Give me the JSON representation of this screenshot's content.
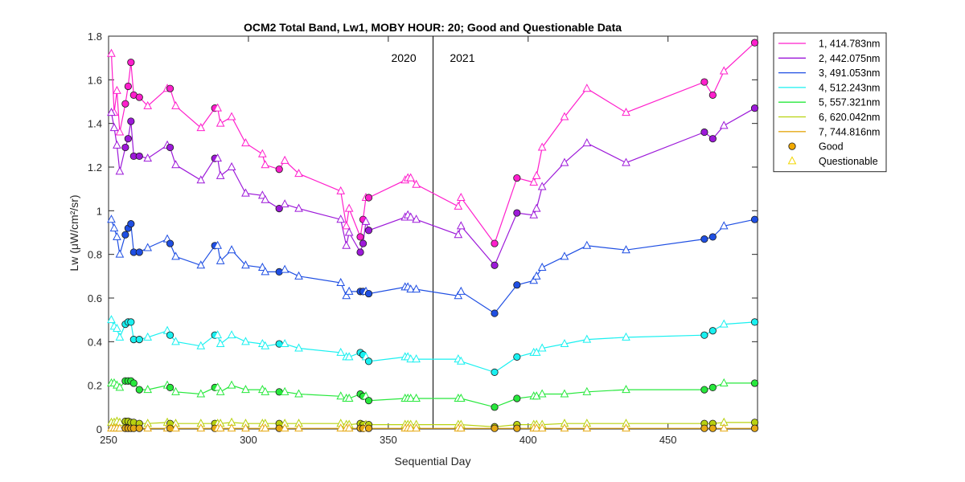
{
  "chart_data": {
    "type": "line",
    "title": "OCM2 Total Band,  Lw1, MOBY HOUR: 20;  Good and Questionable Data",
    "xlabel": "Sequential Day",
    "ylabel": "Lw (μW/cm²/sr)",
    "xlim": [
      250,
      482
    ],
    "ylim": [
      0,
      1.8
    ],
    "xticks": [
      250,
      300,
      350,
      400,
      450
    ],
    "yticks": [
      0,
      0.2,
      0.4,
      0.6,
      0.8,
      1,
      1.2,
      1.4,
      1.6,
      1.8
    ],
    "xtick_labels": [
      "250",
      "300",
      "350",
      "400",
      "450"
    ],
    "ytick_labels": [
      "0",
      "0.2",
      "0.4",
      "0.6",
      "0.8",
      "1",
      "1.2",
      "1.4",
      "1.6",
      "1.8"
    ],
    "grid": false,
    "legend_position": "outside-top-right",
    "annotations": [
      {
        "text": "2020",
        "x": 360,
        "y": 1.7
      },
      {
        "text": "2021",
        "x": 372,
        "y": 1.7
      }
    ],
    "vline_x": 366,
    "x": [
      251,
      252,
      253,
      254,
      256,
      257,
      258,
      259,
      261,
      264,
      271,
      272,
      274,
      283,
      288,
      289,
      290,
      294,
      299,
      305,
      306,
      311,
      313,
      318,
      333,
      335,
      336,
      340,
      341,
      342,
      343,
      356,
      357,
      358,
      360,
      375,
      376,
      388,
      396,
      402,
      403,
      405,
      413,
      421,
      435,
      463,
      466,
      470,
      481
    ],
    "quality": [
      "Q",
      "Q",
      "Q",
      "Q",
      "G",
      "G",
      "G",
      "G",
      "G",
      "Q",
      "Q",
      "G",
      "Q",
      "Q",
      "G",
      "Q",
      "Q",
      "Q",
      "Q",
      "Q",
      "Q",
      "G",
      "Q",
      "Q",
      "Q",
      "Q",
      "Q",
      "G",
      "G",
      "Q",
      "G",
      "Q",
      "Q",
      "Q",
      "Q",
      "Q",
      "Q",
      "G",
      "G",
      "Q",
      "Q",
      "Q",
      "Q",
      "Q",
      "Q",
      "G",
      "G",
      "Q",
      "G"
    ],
    "series": [
      {
        "name": "1, 414.783nm",
        "color": "#ff1fcc",
        "values": [
          1.72,
          1.45,
          1.55,
          1.36,
          1.49,
          1.57,
          1.68,
          1.53,
          1.52,
          1.48,
          1.56,
          1.56,
          1.48,
          1.38,
          1.47,
          1.47,
          1.4,
          1.43,
          1.31,
          1.26,
          1.21,
          1.19,
          1.23,
          1.17,
          1.09,
          0.93,
          1.01,
          0.88,
          0.96,
          1.06,
          1.06,
          1.14,
          1.15,
          1.15,
          1.12,
          1.02,
          1.06,
          0.85,
          1.15,
          1.13,
          1.16,
          1.29,
          1.43,
          1.56,
          1.45,
          1.59,
          1.53,
          1.64,
          1.77
        ]
      },
      {
        "name": "2, 442.075nm",
        "color": "#9d19d9",
        "values": [
          1.45,
          1.38,
          1.3,
          1.18,
          1.29,
          1.33,
          1.41,
          1.25,
          1.25,
          1.24,
          1.3,
          1.29,
          1.21,
          1.14,
          1.24,
          1.24,
          1.16,
          1.2,
          1.08,
          1.07,
          1.05,
          1.01,
          1.03,
          1.01,
          0.96,
          0.84,
          0.9,
          0.81,
          0.85,
          0.95,
          0.91,
          0.97,
          0.98,
          0.97,
          0.96,
          0.89,
          0.93,
          0.75,
          0.99,
          0.98,
          1.01,
          1.11,
          1.22,
          1.31,
          1.22,
          1.36,
          1.33,
          1.39,
          1.47
        ]
      },
      {
        "name": "3, 491.053nm",
        "color": "#1f4fe3",
        "values": [
          0.96,
          0.92,
          0.88,
          0.8,
          0.89,
          0.92,
          0.94,
          0.81,
          0.81,
          0.83,
          0.87,
          0.85,
          0.79,
          0.75,
          0.84,
          0.84,
          0.77,
          0.82,
          0.75,
          0.74,
          0.72,
          0.72,
          0.73,
          0.7,
          0.67,
          0.61,
          0.63,
          0.63,
          0.63,
          0.63,
          0.62,
          0.65,
          0.65,
          0.64,
          0.64,
          0.61,
          0.63,
          0.53,
          0.66,
          0.68,
          0.7,
          0.74,
          0.79,
          0.84,
          0.82,
          0.87,
          0.88,
          0.93,
          0.96
        ]
      },
      {
        "name": "4, 512.243nm",
        "color": "#19f0f0",
        "values": [
          0.5,
          0.47,
          0.46,
          0.42,
          0.48,
          0.49,
          0.49,
          0.41,
          0.41,
          0.42,
          0.45,
          0.43,
          0.4,
          0.38,
          0.43,
          0.43,
          0.39,
          0.43,
          0.4,
          0.39,
          0.38,
          0.39,
          0.39,
          0.37,
          0.35,
          0.33,
          0.33,
          0.35,
          0.34,
          0.33,
          0.31,
          0.33,
          0.33,
          0.32,
          0.32,
          0.32,
          0.31,
          0.26,
          0.33,
          0.35,
          0.35,
          0.37,
          0.39,
          0.41,
          0.42,
          0.43,
          0.45,
          0.48,
          0.49
        ]
      },
      {
        "name": "5, 557.321nm",
        "color": "#27e83c",
        "values": [
          0.21,
          0.21,
          0.2,
          0.19,
          0.22,
          0.22,
          0.22,
          0.21,
          0.18,
          0.18,
          0.2,
          0.19,
          0.17,
          0.16,
          0.19,
          0.19,
          0.17,
          0.2,
          0.18,
          0.18,
          0.17,
          0.17,
          0.17,
          0.16,
          0.15,
          0.14,
          0.14,
          0.16,
          0.15,
          0.15,
          0.13,
          0.14,
          0.14,
          0.14,
          0.14,
          0.14,
          0.14,
          0.1,
          0.14,
          0.15,
          0.15,
          0.16,
          0.16,
          0.17,
          0.18,
          0.18,
          0.19,
          0.21,
          0.21
        ]
      },
      {
        "name": "6, 620.042nm",
        "color": "#b8d20f",
        "values": [
          0.03,
          0.03,
          0.035,
          0.03,
          0.035,
          0.035,
          0.03,
          0.03,
          0.025,
          0.025,
          0.03,
          0.025,
          0.025,
          0.025,
          0.025,
          0.025,
          0.025,
          0.03,
          0.025,
          0.025,
          0.025,
          0.025,
          0.025,
          0.025,
          0.025,
          0.02,
          0.02,
          0.025,
          0.02,
          0.02,
          0.02,
          0.02,
          0.02,
          0.02,
          0.02,
          0.02,
          0.02,
          0.01,
          0.02,
          0.02,
          0.02,
          0.02,
          0.025,
          0.025,
          0.025,
          0.025,
          0.025,
          0.03,
          0.03
        ]
      },
      {
        "name": "7, 744.816nm",
        "color": "#e6a914",
        "values": [
          0.003,
          0.003,
          0.003,
          0.003,
          0.003,
          0.003,
          0.003,
          0.003,
          0.003,
          0.003,
          0.003,
          0.003,
          0.003,
          0.003,
          0.003,
          0.003,
          0.003,
          0.003,
          0.003,
          0.003,
          0.003,
          0.003,
          0.003,
          0.003,
          0.003,
          0.003,
          0.003,
          0.003,
          0.003,
          0.003,
          0.003,
          0.003,
          0.003,
          0.003,
          0.003,
          0.003,
          0.003,
          0.003,
          0.003,
          0.003,
          0.003,
          0.003,
          0.003,
          0.003,
          0.003,
          0.003,
          0.003,
          0.003,
          0.003
        ]
      }
    ],
    "legend_entries": [
      {
        "label": "1, 414.783nm",
        "kind": "line",
        "color": "#ff1fcc"
      },
      {
        "label": "2, 442.075nm",
        "kind": "line",
        "color": "#9d19d9"
      },
      {
        "label": "3, 491.053nm",
        "kind": "line",
        "color": "#1f4fe3"
      },
      {
        "label": "4, 512.243nm",
        "kind": "line",
        "color": "#19f0f0"
      },
      {
        "label": "5, 557.321nm",
        "kind": "line",
        "color": "#27e83c"
      },
      {
        "label": "6, 620.042nm",
        "kind": "line",
        "color": "#b8d20f"
      },
      {
        "label": "7, 744.816nm",
        "kind": "line",
        "color": "#e6a914"
      },
      {
        "label": "Good",
        "kind": "circle",
        "color": "#f2a900"
      },
      {
        "label": "Questionable",
        "kind": "triangle",
        "color": "#f2d600"
      }
    ]
  }
}
